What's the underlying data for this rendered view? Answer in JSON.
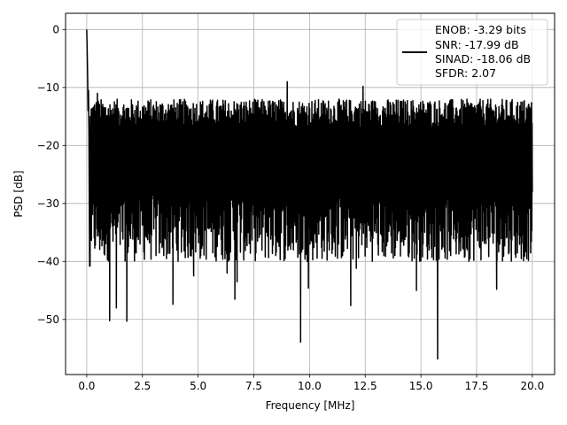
{
  "chart_data": {
    "type": "line",
    "title": "",
    "xlabel": "Frequency [MHz]",
    "ylabel": "PSD [dB]",
    "xlim": [
      -0.95,
      21.0
    ],
    "ylim": [
      -59.5,
      2.8
    ],
    "xticks": [
      0.0,
      2.5,
      5.0,
      7.5,
      10.0,
      12.5,
      15.0,
      17.5,
      20.0
    ],
    "xtick_labels": [
      "0.0",
      "2.5",
      "5.0",
      "7.5",
      "10.0",
      "12.5",
      "15.0",
      "17.5",
      "20.0"
    ],
    "yticks": [
      0,
      -10,
      -20,
      -30,
      -40,
      -50
    ],
    "ytick_labels": [
      "0",
      "−10",
      "−20",
      "−30",
      "−40",
      "−50"
    ],
    "grid": true,
    "legend_placement": "top-right",
    "legend_lines": [
      "ENOB: -3.29 bits",
      "SNR: -17.99 dB",
      "SINAD: -18.06 dB",
      "SFDR: 2.07"
    ],
    "series": [
      {
        "color": "#000000",
        "x": [
          0.0,
          0.02,
          0.04,
          0.06,
          0.08,
          0.1,
          0.13,
          0.16,
          0.2
        ],
        "y": [
          0.0,
          -3.5,
          -8.0,
          -14.0,
          -10.5,
          -18.0,
          -40.8,
          -15.0,
          -25.0
        ],
        "noise_floor": {
          "x_range": [
            0.2,
            20.0
          ],
          "upper_envelope_range": [
            -17.0,
            -12.0
          ],
          "lower_envelope_range": [
            -40.0,
            -28.0
          ],
          "notable_peaks": [
            {
              "x": 9.0,
              "y": -9.0
            },
            {
              "x": 12.4,
              "y": -9.8
            },
            {
              "x": 0.48,
              "y": -11.0
            }
          ],
          "notable_dips": [
            {
              "x": 0.15,
              "y": -40.8
            },
            {
              "x": 1.03,
              "y": -50.2
            },
            {
              "x": 1.8,
              "y": -50.3
            },
            {
              "x": 1.33,
              "y": -48.0
            },
            {
              "x": 3.87,
              "y": -47.4
            },
            {
              "x": 6.65,
              "y": -46.5
            },
            {
              "x": 6.75,
              "y": -43.5
            },
            {
              "x": 9.6,
              "y": -53.9
            },
            {
              "x": 9.95,
              "y": -44.6
            },
            {
              "x": 11.85,
              "y": -47.6
            },
            {
              "x": 15.75,
              "y": -56.8
            },
            {
              "x": 14.8,
              "y": -45.0
            },
            {
              "x": 18.4,
              "y": -44.8
            },
            {
              "x": 6.3,
              "y": -42.0
            },
            {
              "x": 4.8,
              "y": -42.5
            },
            {
              "x": 12.1,
              "y": -41.2
            }
          ]
        }
      }
    ]
  }
}
